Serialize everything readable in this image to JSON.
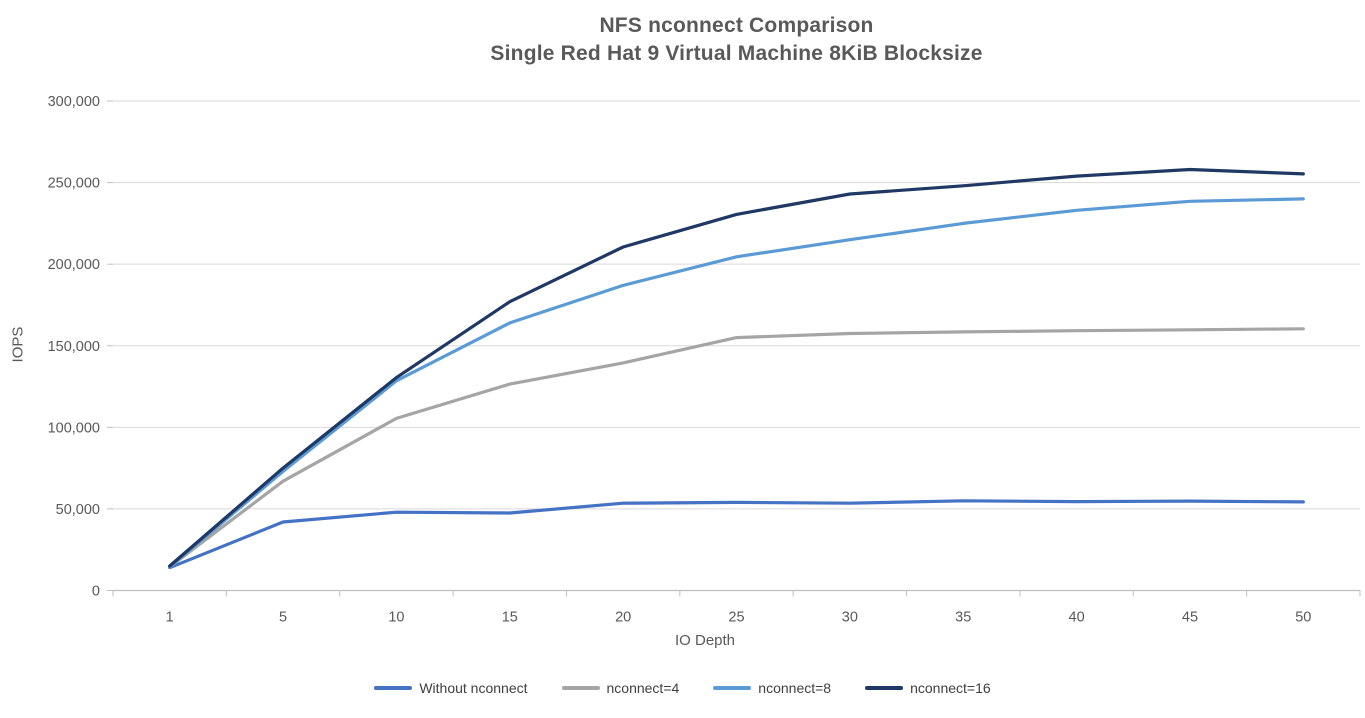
{
  "chart_data": {
    "type": "line",
    "title": "NFS nconnect Comparison",
    "subtitle": "Single Red Hat 9 Virtual Machine 8KiB Blocksize",
    "xlabel": "IO Depth",
    "ylabel": "IOPS",
    "categories": [
      "1",
      "5",
      "10",
      "15",
      "20",
      "25",
      "30",
      "35",
      "40",
      "45",
      "50"
    ],
    "y_axis": {
      "min": 0,
      "max": 300000,
      "step": 50000,
      "tick_labels": [
        "0",
        "50,000",
        "100,000",
        "150,000",
        "200,000",
        "250,000",
        "300,000"
      ]
    },
    "grid": true,
    "legend_position": "bottom",
    "colors": {
      "gridline": "#d9d9d9",
      "axis_line": "#bfbfbf",
      "text": "#595959",
      "legend_text": "#404040"
    },
    "series": [
      {
        "name": "Without nconnect",
        "color": "#4472C4",
        "values": [
          14000,
          42000,
          48000,
          47500,
          53500,
          54000,
          53500,
          55000,
          54500,
          54800,
          54300
        ]
      },
      {
        "name": "nconnect=4",
        "color": "#A5A5A5",
        "values": [
          14500,
          67000,
          105500,
          126500,
          139500,
          155000,
          157500,
          158500,
          159200,
          159800,
          160400
        ]
      },
      {
        "name": "nconnect=8",
        "color": "#5B9BD5",
        "values": [
          14500,
          73000,
          128500,
          164000,
          187000,
          204500,
          215000,
          225000,
          233000,
          238500,
          240000
        ]
      },
      {
        "name": "nconnect=16",
        "color": "#1F3864",
        "values": [
          15000,
          75000,
          130500,
          177000,
          210500,
          230500,
          243000,
          248000,
          254000,
          258000,
          255300
        ]
      }
    ]
  }
}
